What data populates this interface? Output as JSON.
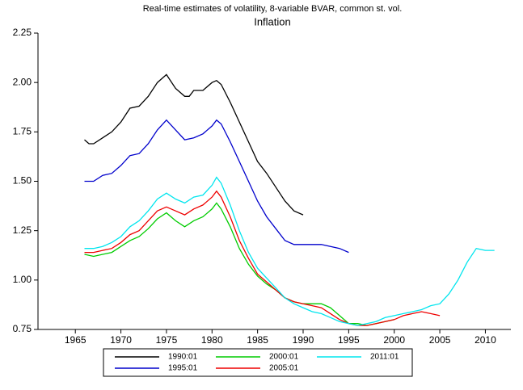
{
  "chart_data": {
    "type": "line",
    "title": "Real-time estimates of volatility, 8-variable BVAR, common st. vol.",
    "subtitle": "Inflation",
    "xlim": [
      1960.9,
      2012.8
    ],
    "xticks": [
      1965,
      1970,
      1975,
      1980,
      1985,
      1990,
      1995,
      2000,
      2005,
      2010
    ],
    "ylim": [
      0.75,
      2.25
    ],
    "yticks": [
      0.75,
      {
        "value": 1,
        "label": "1.00"
      },
      1.25,
      {
        "value": 1.5,
        "label": "1.50"
      },
      1.75,
      {
        "value": 2,
        "label": "2.00"
      },
      2.25
    ],
    "series": [
      {
        "name": "1990:01",
        "color": "#000000",
        "x": [
          1966,
          1966.5,
          1967,
          1968,
          1969,
          1970,
          1971,
          1972,
          1973,
          1974,
          1975,
          1976,
          1977,
          1977.5,
          1978,
          1979,
          1980,
          1980.5,
          1981,
          1982,
          1983,
          1984,
          1985,
          1986,
          1987,
          1988,
          1989,
          1990
        ],
        "values": [
          1.71,
          1.69,
          1.69,
          1.72,
          1.75,
          1.8,
          1.87,
          1.88,
          1.93,
          2.0,
          2.04,
          1.97,
          1.93,
          1.93,
          1.96,
          1.96,
          2.0,
          2.01,
          1.99,
          1.9,
          1.8,
          1.7,
          1.6,
          1.54,
          1.47,
          1.4,
          1.35,
          1.33
        ]
      },
      {
        "name": "1995:01",
        "color": "#0000cc",
        "x": [
          1966,
          1967,
          1968,
          1969,
          1970,
          1971,
          1972,
          1973,
          1974,
          1975,
          1976,
          1977,
          1978,
          1979,
          1980,
          1980.5,
          1981,
          1982,
          1983,
          1984,
          1985,
          1986,
          1987,
          1988,
          1989,
          1990,
          1991,
          1992,
          1993,
          1994,
          1995
        ],
        "values": [
          1.5,
          1.5,
          1.53,
          1.54,
          1.58,
          1.63,
          1.64,
          1.69,
          1.76,
          1.81,
          1.76,
          1.71,
          1.72,
          1.74,
          1.78,
          1.81,
          1.79,
          1.7,
          1.6,
          1.5,
          1.4,
          1.32,
          1.26,
          1.2,
          1.18,
          1.18,
          1.18,
          1.18,
          1.17,
          1.16,
          1.14
        ]
      },
      {
        "name": "2000:01",
        "color": "#00cc00",
        "x": [
          1966,
          1967,
          1968,
          1969,
          1970,
          1971,
          1972,
          1973,
          1974,
          1975,
          1976,
          1977,
          1978,
          1979,
          1980,
          1980.5,
          1981,
          1982,
          1983,
          1984,
          1985,
          1986,
          1987,
          1988,
          1989,
          1990,
          1991,
          1992,
          1993,
          1994,
          1995,
          1996,
          1997,
          1998,
          1999,
          2000
        ],
        "values": [
          1.13,
          1.12,
          1.13,
          1.14,
          1.17,
          1.2,
          1.22,
          1.26,
          1.31,
          1.34,
          1.3,
          1.27,
          1.3,
          1.32,
          1.36,
          1.39,
          1.36,
          1.27,
          1.16,
          1.08,
          1.02,
          0.98,
          0.95,
          0.91,
          0.89,
          0.88,
          0.88,
          0.88,
          0.86,
          0.82,
          0.78,
          0.78,
          0.77,
          0.78,
          0.79,
          0.8
        ]
      },
      {
        "name": "2005:01",
        "color": "#ee0000",
        "x": [
          1966,
          1967,
          1968,
          1969,
          1970,
          1971,
          1972,
          1973,
          1974,
          1975,
          1976,
          1977,
          1978,
          1979,
          1980,
          1980.5,
          1981,
          1982,
          1983,
          1984,
          1985,
          1986,
          1987,
          1988,
          1989,
          1990,
          1991,
          1992,
          1993,
          1994,
          1995,
          1996,
          1997,
          1998,
          1999,
          2000,
          2001,
          2002,
          2003,
          2004,
          2005
        ],
        "values": [
          1.14,
          1.14,
          1.15,
          1.16,
          1.19,
          1.23,
          1.25,
          1.3,
          1.35,
          1.37,
          1.35,
          1.33,
          1.36,
          1.38,
          1.42,
          1.45,
          1.42,
          1.32,
          1.2,
          1.11,
          1.03,
          0.99,
          0.95,
          0.91,
          0.89,
          0.88,
          0.87,
          0.86,
          0.83,
          0.8,
          0.78,
          0.77,
          0.77,
          0.78,
          0.79,
          0.8,
          0.82,
          0.83,
          0.84,
          0.83,
          0.82
        ]
      },
      {
        "name": "2011:01",
        "color": "#00e5ee",
        "x": [
          1966,
          1967,
          1968,
          1969,
          1970,
          1971,
          1972,
          1973,
          1974,
          1975,
          1976,
          1977,
          1978,
          1979,
          1980,
          1980.5,
          1981,
          1982,
          1983,
          1984,
          1985,
          1986,
          1987,
          1988,
          1989,
          1990,
          1991,
          1992,
          1993,
          1994,
          1995,
          1996,
          1997,
          1998,
          1999,
          2000,
          2001,
          2002,
          2003,
          2004,
          2005,
          2006,
          2007,
          2008,
          2009,
          2010,
          2011
        ],
        "values": [
          1.16,
          1.16,
          1.17,
          1.19,
          1.22,
          1.27,
          1.3,
          1.35,
          1.41,
          1.44,
          1.41,
          1.39,
          1.42,
          1.43,
          1.48,
          1.52,
          1.49,
          1.38,
          1.25,
          1.14,
          1.06,
          1.01,
          0.96,
          0.91,
          0.88,
          0.86,
          0.84,
          0.83,
          0.81,
          0.79,
          0.78,
          0.77,
          0.78,
          0.79,
          0.81,
          0.82,
          0.83,
          0.84,
          0.85,
          0.87,
          0.88,
          0.93,
          1.0,
          1.09,
          1.16,
          1.15,
          1.15
        ]
      }
    ]
  }
}
